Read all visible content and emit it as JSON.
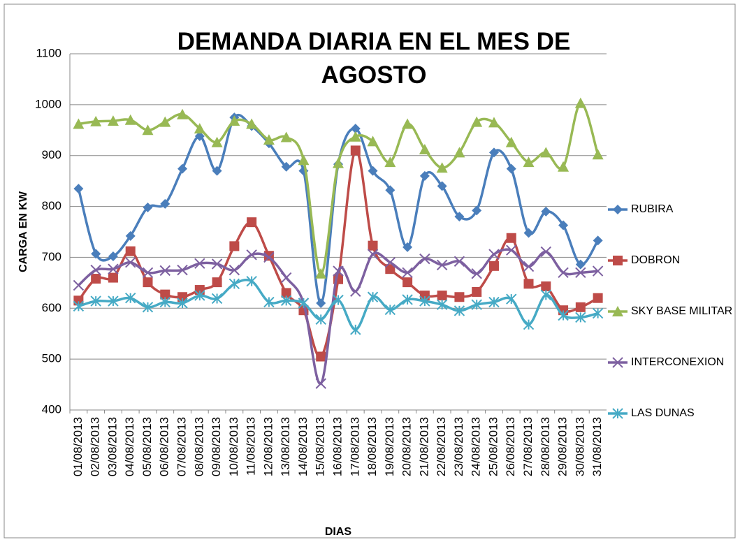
{
  "chart_data": {
    "type": "line",
    "title": "DEMANDA DIARIA EN EL MES DE AGOSTO",
    "y_label": "CARGA EN  KW",
    "x_label": "DIAS",
    "categories": [
      "01/08/2013",
      "02/08/2013",
      "03/08/2013",
      "04/08/2013",
      "05/08/2013",
      "06/08/2013",
      "07/08/2013",
      "08/08/2013",
      "09/08/2013",
      "10/08/2013",
      "11/08/2013",
      "12/08/2013",
      "13/08/2013",
      "14/08/2013",
      "15/08/2013",
      "16/08/2013",
      "17/08/2013",
      "18/08/2013",
      "19/08/2013",
      "20/08/2013",
      "21/08/2013",
      "22/08/2013",
      "23/08/2013",
      "24/08/2013",
      "25/08/2013",
      "26/08/2013",
      "27/08/2013",
      "28/08/2013",
      "29/08/2013",
      "30/08/2013",
      "31/08/2013"
    ],
    "ylim": [
      400,
      1100
    ],
    "yticks": [
      400,
      500,
      600,
      700,
      800,
      900,
      1000,
      1100
    ],
    "grid": true,
    "smooth": true,
    "legend": "right",
    "series": [
      {
        "name": "RUBIRA",
        "color": "#4a7ebb",
        "marker": "diamond",
        "values": [
          835,
          707,
          702,
          742,
          798,
          805,
          874,
          938,
          870,
          975,
          958,
          924,
          878,
          870,
          610,
          883,
          953,
          870,
          832,
          720,
          860,
          840,
          780,
          792,
          906,
          874,
          748,
          790,
          763,
          686,
          733
        ]
      },
      {
        "name": "DOBRON",
        "color": "#be4b48",
        "marker": "square",
        "values": [
          615,
          658,
          660,
          712,
          651,
          627,
          622,
          636,
          651,
          722,
          769,
          703,
          630,
          596,
          505,
          657,
          910,
          723,
          677,
          651,
          625,
          625,
          622,
          632,
          683,
          738,
          648,
          643,
          596,
          602,
          620
        ]
      },
      {
        "name": "SKY BASE MILITAR",
        "color": "#98b954",
        "marker": "triangle",
        "values": [
          962,
          967,
          968,
          970,
          950,
          966,
          981,
          953,
          926,
          968,
          962,
          931,
          936,
          891,
          668,
          885,
          937,
          928,
          887,
          962,
          912,
          876,
          906,
          966,
          965,
          926,
          887,
          906,
          878,
          1003,
          902
        ]
      },
      {
        "name": "INTERCONEXION",
        "color": "#7d60a0",
        "marker": "x",
        "values": [
          645,
          675,
          677,
          690,
          670,
          674,
          675,
          688,
          687,
          675,
          705,
          700,
          660,
          610,
          452,
          673,
          633,
          706,
          690,
          670,
          697,
          685,
          692,
          668,
          706,
          714,
          682,
          711,
          670,
          670,
          673
        ]
      },
      {
        "name": "LAS DUNAS",
        "color": "#46aac5",
        "marker": "star",
        "values": [
          604,
          614,
          614,
          620,
          602,
          612,
          610,
          625,
          619,
          648,
          653,
          612,
          615,
          610,
          578,
          616,
          558,
          622,
          597,
          617,
          614,
          607,
          595,
          607,
          612,
          618,
          568,
          626,
          586,
          582,
          590
        ]
      }
    ]
  }
}
